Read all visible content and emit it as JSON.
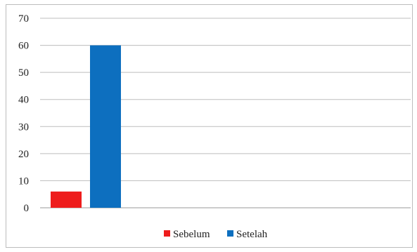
{
  "chart_data": {
    "type": "bar",
    "title": "",
    "xlabel": "",
    "ylabel": "",
    "categories": [
      ""
    ],
    "series": [
      {
        "name": "Sebelum",
        "values": [
          6
        ],
        "color": "#ee1c1c"
      },
      {
        "name": "Setelah",
        "values": [
          60
        ],
        "color": "#0d6fbf"
      }
    ],
    "ylim": [
      0,
      70
    ],
    "yticks": [
      "0",
      "10",
      "20",
      "30",
      "40",
      "50",
      "60",
      "70"
    ],
    "grid": true,
    "legend_position": "bottom"
  }
}
